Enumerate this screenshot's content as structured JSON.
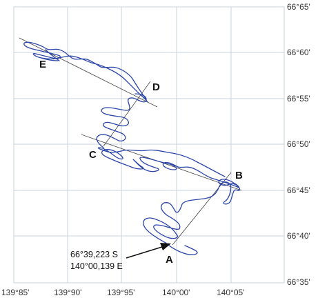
{
  "map": {
    "x_ticks": [
      "139°85'",
      "139°90'",
      "139°95'",
      "140°00'",
      "140°05'"
    ],
    "y_ticks": [
      "66°65'",
      "66°60'",
      "66°55'",
      "66°50'",
      "66°45'",
      "66°40'",
      "66°35'"
    ],
    "markers": [
      "A",
      "B",
      "C",
      "D",
      "E"
    ],
    "annotation": {
      "line1": "66°39,223 S",
      "line2": "140°00,139 E"
    },
    "colors": {
      "track": "#2b45a8",
      "grid": "#c9d2df",
      "axis_line": "#555555",
      "text": "#111111"
    }
  }
}
